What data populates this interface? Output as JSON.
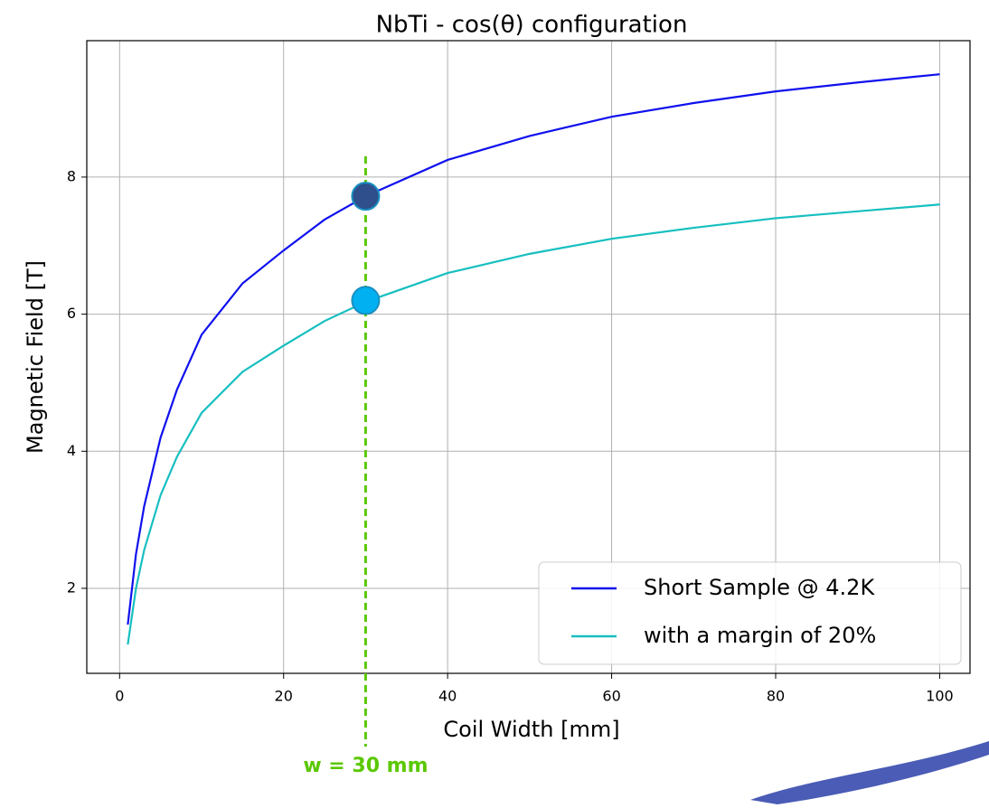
{
  "chart_data": {
    "type": "line",
    "title": "NbTi - cos(θ) configuration",
    "x_label": "Coil Width [mm]",
    "y_label": "Magnetic Field [T]",
    "x": [
      1,
      2,
      3,
      5,
      7,
      10,
      15,
      20,
      25,
      30,
      40,
      50,
      60,
      70,
      80,
      90,
      100
    ],
    "series": [
      {
        "name": "Short Sample @ 4.2K",
        "color": "#1010ee",
        "values": [
          1.47,
          2.5,
          3.2,
          4.2,
          4.9,
          5.7,
          6.45,
          6.93,
          7.38,
          7.72,
          8.25,
          8.6,
          8.88,
          9.08,
          9.25,
          9.38,
          9.5
        ]
      },
      {
        "name": "with a margin of 20%",
        "color": "#17bfc0",
        "values": [
          1.18,
          2.0,
          2.56,
          3.36,
          3.92,
          4.56,
          5.16,
          5.54,
          5.9,
          6.18,
          6.6,
          6.88,
          7.1,
          7.26,
          7.4,
          7.5,
          7.6
        ]
      }
    ],
    "markers": [
      {
        "x": 30,
        "y": 7.72,
        "color": "#2e4f8c"
      },
      {
        "x": 30,
        "y": 6.2,
        "color": "#00b0f0"
      }
    ],
    "vline": {
      "x": 30,
      "label": "w = 30 mm",
      "color": "#5ac800"
    },
    "xlim": [
      -4,
      103.7
    ],
    "ylim": [
      0.76,
      9.99
    ],
    "xticks": [
      0,
      20,
      40,
      60,
      80,
      100
    ],
    "yticks": [
      2,
      4,
      6,
      8
    ],
    "grid": true,
    "legend": "lower right"
  }
}
